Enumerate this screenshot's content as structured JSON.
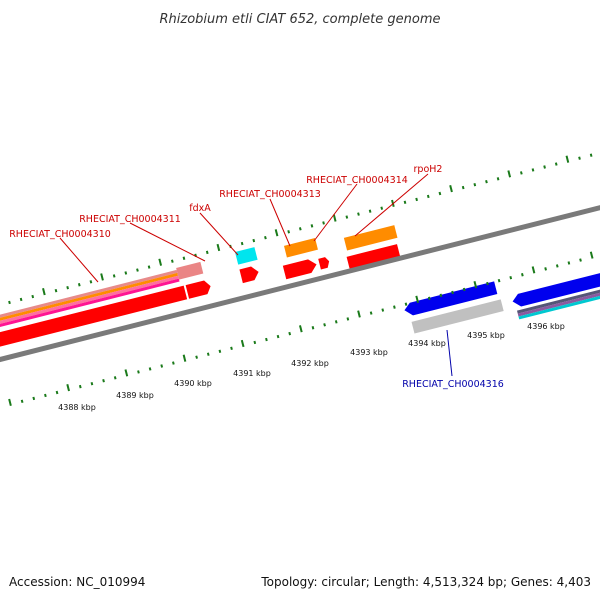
{
  "title": "Rhizobium etli CIAT 652, complete genome",
  "footer": {
    "accession": "Accession: NC_010994",
    "summary": "Topology: circular; Length: 4,513,324 bp; Genes: 4,403"
  },
  "scale_labels": [
    "4388 kbp",
    "4389 kbp",
    "4390 kbp",
    "4391 kbp",
    "4392 kbp",
    "4393 kbp",
    "4394 kbp",
    "4395 kbp",
    "4396 kbp"
  ],
  "gene_labels": [
    {
      "name": "RHECIAT_CH0004310",
      "color": "#cc0000"
    },
    {
      "name": "RHECIAT_CH0004311",
      "color": "#cc0000"
    },
    {
      "name": "fdxA",
      "color": "#cc0000"
    },
    {
      "name": "RHECIAT_CH0004313",
      "color": "#cc0000"
    },
    {
      "name": "RHECIAT_CH0004314",
      "color": "#cc0000"
    },
    {
      "name": "rpoH2",
      "color": "#cc0000"
    },
    {
      "name": "RHECIAT_CH0004316",
      "color": "#0000aa"
    }
  ],
  "colors": {
    "forward_gene": "#ff0000",
    "reverse_gene": "#0000ee",
    "rna_feature": "#ff8c00",
    "cyan_feature": "#00e5ee",
    "pseudo_feature": "#c0c0c0",
    "tick": "#1a7a1a",
    "backbone": "#808080"
  }
}
